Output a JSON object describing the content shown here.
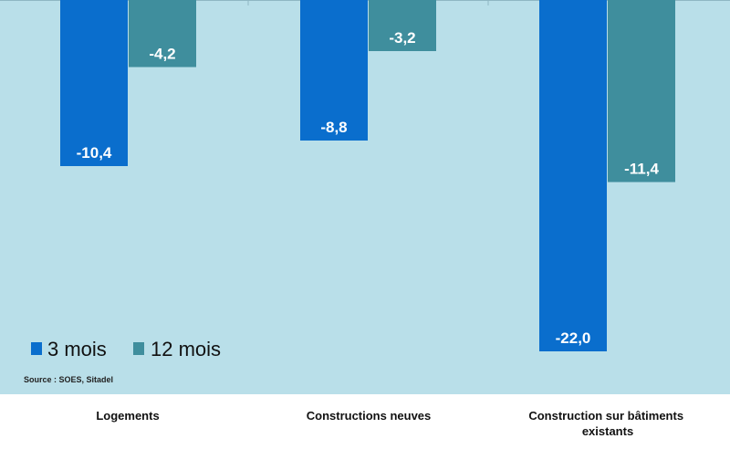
{
  "chart_data": {
    "type": "bar",
    "categories": [
      "Logements",
      "Constructions neuves",
      "Construction sur bâtiments existants"
    ],
    "series": [
      {
        "name": "3 mois",
        "values": [
          -10.4,
          -8.8,
          -22.0
        ],
        "labels": [
          "-10,4",
          "-8,8",
          "-22,0"
        ],
        "color": "#0a6ecd"
      },
      {
        "name": "12 mois",
        "values": [
          -4.2,
          -3.2,
          -11.4
        ],
        "labels": [
          "-4,2",
          "-3,2",
          "-11,4"
        ],
        "color": "#3f8e9d"
      }
    ],
    "ylim": [
      -24,
      0
    ],
    "grid": false,
    "legend_position": "bottom-left",
    "title": "",
    "xlabel": "",
    "ylabel": ""
  },
  "source": "Source : SOES,  Sitadel",
  "colors": {
    "plot_bg": "#b9dfe9",
    "page_bg": "#ffffff"
  }
}
